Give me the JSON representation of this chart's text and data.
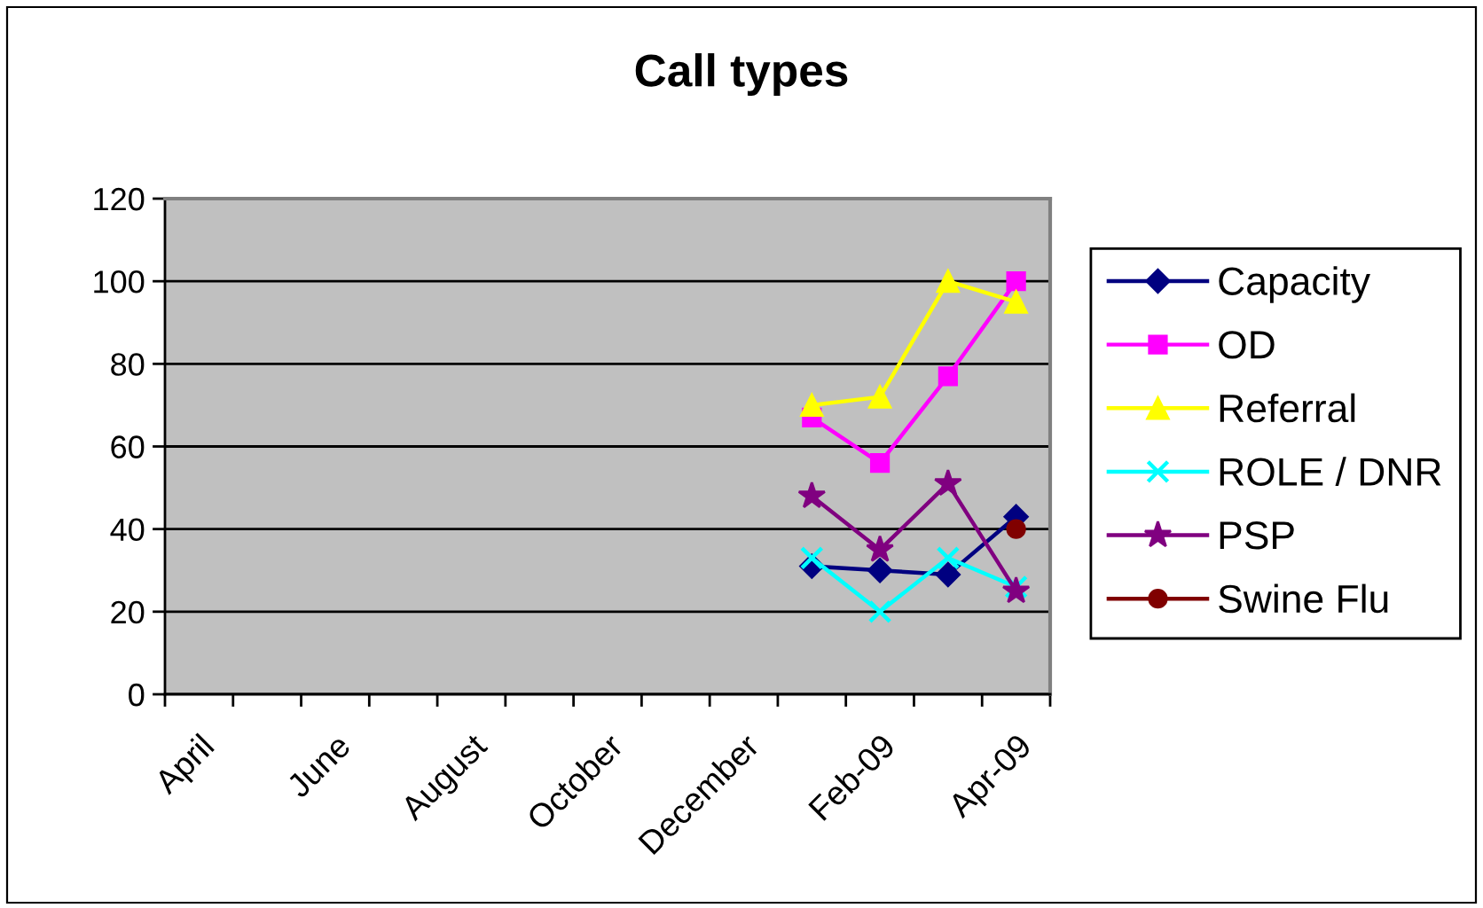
{
  "chart_data": {
    "type": "line",
    "title": "Call types",
    "categories": [
      "April",
      null,
      "June",
      null,
      "August",
      null,
      "October",
      null,
      "December",
      null,
      "Feb-09",
      null,
      "Apr-09"
    ],
    "series": [
      {
        "name": "Capacity",
        "color": "#000080",
        "marker": "diamond",
        "values": [
          null,
          null,
          null,
          null,
          null,
          null,
          null,
          null,
          null,
          31,
          30,
          29,
          43
        ]
      },
      {
        "name": "OD",
        "color": "#ff00ff",
        "marker": "square",
        "values": [
          null,
          null,
          null,
          null,
          null,
          null,
          null,
          null,
          null,
          67,
          56,
          77,
          100
        ]
      },
      {
        "name": "Referral",
        "color": "#ffff00",
        "marker": "triangle",
        "values": [
          null,
          null,
          null,
          null,
          null,
          null,
          null,
          null,
          null,
          70,
          72,
          100,
          95
        ]
      },
      {
        "name": "ROLE / DNR",
        "color": "#00ffff",
        "marker": "cross",
        "values": [
          null,
          null,
          null,
          null,
          null,
          null,
          null,
          null,
          null,
          33,
          20,
          33,
          26
        ]
      },
      {
        "name": "PSP",
        "color": "#800080",
        "marker": "star",
        "values": [
          null,
          null,
          null,
          null,
          null,
          null,
          null,
          null,
          null,
          48,
          35,
          51,
          25
        ]
      },
      {
        "name": "Swine Flu",
        "color": "#800000",
        "marker": "circle",
        "values": [
          null,
          null,
          null,
          null,
          null,
          null,
          null,
          null,
          null,
          null,
          null,
          null,
          40
        ]
      }
    ],
    "ylim": [
      0,
      120
    ],
    "yticks": [
      0,
      20,
      40,
      60,
      80,
      100,
      120
    ],
    "grid": "y",
    "legend": "right",
    "line_style": "solid"
  }
}
